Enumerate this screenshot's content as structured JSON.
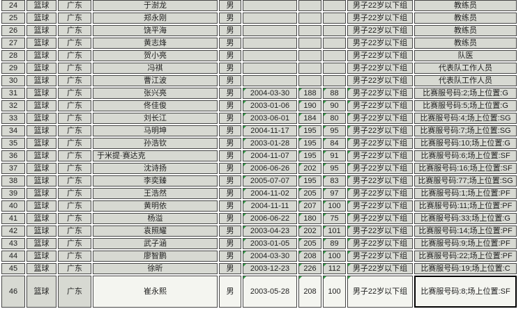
{
  "colors": {
    "cell_bg": "#d7d9d2",
    "light_bg": "#f4f5f0",
    "border": "#454545",
    "selected_border": "#000000",
    "indicator_green": "#2f9e44",
    "text": "#1f1f1f",
    "page_bg": "#ffffff"
  },
  "table": {
    "columns": [
      "no",
      "sport",
      "province",
      "name",
      "gender",
      "birth",
      "height",
      "weight",
      "group",
      "role"
    ],
    "rows": [
      {
        "no": "24",
        "sport": "篮球",
        "province": "广东",
        "name": "于澍龙",
        "gender": "男",
        "birth": "",
        "height": "",
        "weight": "",
        "group": "男子22岁以下组",
        "role": "教练员"
      },
      {
        "no": "25",
        "sport": "篮球",
        "province": "广东",
        "name": "郑永刚",
        "gender": "男",
        "birth": "",
        "height": "",
        "weight": "",
        "group": "男子22岁以下组",
        "role": "教练员"
      },
      {
        "no": "26",
        "sport": "篮球",
        "province": "广东",
        "name": "饶平海",
        "gender": "男",
        "birth": "",
        "height": "",
        "weight": "",
        "group": "男子22岁以下组",
        "role": "教练员"
      },
      {
        "no": "27",
        "sport": "篮球",
        "province": "广东",
        "name": "黄志烽",
        "gender": "男",
        "birth": "",
        "height": "",
        "weight": "",
        "group": "男子22岁以下组",
        "role": "教练员"
      },
      {
        "no": "28",
        "sport": "篮球",
        "province": "广东",
        "name": "贺小亮",
        "gender": "男",
        "birth": "",
        "height": "",
        "weight": "",
        "group": "男子22岁以下组",
        "role": "队医"
      },
      {
        "no": "29",
        "sport": "篮球",
        "province": "广东",
        "name": "冯祺",
        "gender": "男",
        "birth": "",
        "height": "",
        "weight": "",
        "group": "男子22岁以下组",
        "role": "代表队工作人员"
      },
      {
        "no": "30",
        "sport": "篮球",
        "province": "广东",
        "name": "曹江波",
        "gender": "男",
        "birth": "",
        "height": "",
        "weight": "",
        "group": "男子22岁以下组",
        "role": "代表队工作人员"
      },
      {
        "no": "31",
        "sport": "篮球",
        "province": "广东",
        "name": "张兴亮",
        "gender": "男",
        "birth": "2004-03-30",
        "height": "188",
        "weight": "88",
        "group": "男子22岁以下组",
        "role": "比赛服号码:2;场上位置:G",
        "indicators": [
          "birth",
          "height",
          "weight",
          "group"
        ]
      },
      {
        "no": "32",
        "sport": "篮球",
        "province": "广东",
        "name": "佟佳俊",
        "gender": "男",
        "birth": "2003-01-06",
        "height": "190",
        "weight": "90",
        "group": "男子22岁以下组",
        "role": "比赛服号码:5;场上位置:G",
        "indicators": [
          "birth",
          "height",
          "weight",
          "group"
        ]
      },
      {
        "no": "33",
        "sport": "篮球",
        "province": "广东",
        "name": "刘长江",
        "gender": "男",
        "birth": "2003-06-01",
        "height": "184",
        "weight": "80",
        "group": "男子22岁以下组",
        "role": "比赛服号码:4;场上位置:SG",
        "indicators": [
          "birth",
          "height",
          "weight",
          "group"
        ]
      },
      {
        "no": "34",
        "sport": "篮球",
        "province": "广东",
        "name": "马明坤",
        "gender": "男",
        "birth": "2004-11-17",
        "height": "195",
        "weight": "95",
        "group": "男子22岁以下组",
        "role": "比赛服号码:7;场上位置:SG",
        "indicators": [
          "birth",
          "height",
          "weight",
          "group"
        ]
      },
      {
        "no": "35",
        "sport": "篮球",
        "province": "广东",
        "name": "孙浩钦",
        "gender": "男",
        "birth": "2003-01-28",
        "height": "195",
        "weight": "84",
        "group": "男子22岁以下组",
        "role": "比赛服号码:10;场上位置:G",
        "indicators": [
          "birth",
          "height",
          "weight",
          "group"
        ]
      },
      {
        "no": "36",
        "sport": "篮球",
        "province": "广东",
        "name": "于米提·赛达克",
        "gender": "男",
        "birth": "2004-11-07",
        "height": "195",
        "weight": "91",
        "group": "男子22岁以下组",
        "role": "比赛服号码:6;场上位置:SF",
        "indicators": [
          "birth",
          "height",
          "weight",
          "group"
        ],
        "name_align": "left"
      },
      {
        "no": "37",
        "sport": "篮球",
        "province": "广东",
        "name": "沈诗扬",
        "gender": "男",
        "birth": "2006-06-26",
        "height": "202",
        "weight": "95",
        "group": "男子22岁以下组",
        "role": "比赛服号码:16;场上位置:SF",
        "indicators": [
          "birth",
          "height",
          "weight",
          "group"
        ]
      },
      {
        "no": "38",
        "sport": "篮球",
        "province": "广东",
        "name": "李奕臻",
        "gender": "男",
        "birth": "2005-07-07",
        "height": "195",
        "weight": "83",
        "group": "男子22岁以下组",
        "role": "比赛服号码:77;场上位置:SG",
        "indicators": [
          "birth",
          "height",
          "weight",
          "group"
        ]
      },
      {
        "no": "39",
        "sport": "篮球",
        "province": "广东",
        "name": "王浩然",
        "gender": "男",
        "birth": "2004-11-02",
        "height": "205",
        "weight": "97",
        "group": "男子22岁以下组",
        "role": "比赛服号码:1;场上位置:PF",
        "indicators": [
          "birth",
          "height",
          "weight",
          "group"
        ]
      },
      {
        "no": "40",
        "sport": "篮球",
        "province": "广东",
        "name": "黄明依",
        "gender": "男",
        "birth": "2004-11-11",
        "height": "207",
        "weight": "100",
        "group": "男子22岁以下组",
        "role": "比赛服号码:11;场上位置:PF",
        "indicators": [
          "birth",
          "height",
          "weight",
          "group"
        ]
      },
      {
        "no": "41",
        "sport": "篮球",
        "province": "广东",
        "name": "杨溢",
        "gender": "男",
        "birth": "2006-06-22",
        "height": "180",
        "weight": "75",
        "group": "男子22岁以下组",
        "role": "比赛服号码:33;场上位置:G",
        "indicators": [
          "birth",
          "height",
          "weight",
          "group"
        ]
      },
      {
        "no": "42",
        "sport": "篮球",
        "province": "广东",
        "name": "袁照耀",
        "gender": "男",
        "birth": "2003-04-23",
        "height": "202",
        "weight": "101",
        "group": "男子22岁以下组",
        "role": "比赛服号码:14;场上位置:PF",
        "indicators": [
          "birth",
          "height",
          "weight",
          "group"
        ]
      },
      {
        "no": "43",
        "sport": "篮球",
        "province": "广东",
        "name": "武子涵",
        "gender": "男",
        "birth": "2003-01-05",
        "height": "205",
        "weight": "89",
        "group": "男子22岁以下组",
        "role": "比赛服号码:9;场上位置:PF",
        "indicators": [
          "birth",
          "height",
          "weight",
          "group"
        ]
      },
      {
        "no": "44",
        "sport": "篮球",
        "province": "广东",
        "name": "廖智鹏",
        "gender": "男",
        "birth": "2004-03-30",
        "height": "208",
        "weight": "100",
        "group": "男子22岁以下组",
        "role": "比赛服号码:22;场上位置:PF",
        "indicators": [
          "birth",
          "height",
          "weight",
          "group"
        ]
      },
      {
        "no": "45",
        "sport": "篮球",
        "province": "广东",
        "name": "徐昕",
        "gender": "男",
        "birth": "2003-12-23",
        "height": "226",
        "weight": "112",
        "group": "男子22岁以下组",
        "role": "比赛服号码:19;场上位置:C",
        "indicators": [
          "birth",
          "height",
          "weight",
          "group"
        ]
      },
      {
        "no": "46",
        "sport": "篮球",
        "province": "广东",
        "name": "崔永熙",
        "gender": "男",
        "birth": "2003-05-28",
        "height": "208",
        "weight": "100",
        "group": "男子22岁以下组",
        "role": "比赛服号码:8;场上位置:SF",
        "indicators": [
          "birth",
          "height",
          "weight",
          "group"
        ],
        "tall": true,
        "light_cells": [
          "name",
          "gender",
          "birth",
          "height",
          "weight",
          "group",
          "role"
        ],
        "selected_cell": "role"
      }
    ]
  }
}
